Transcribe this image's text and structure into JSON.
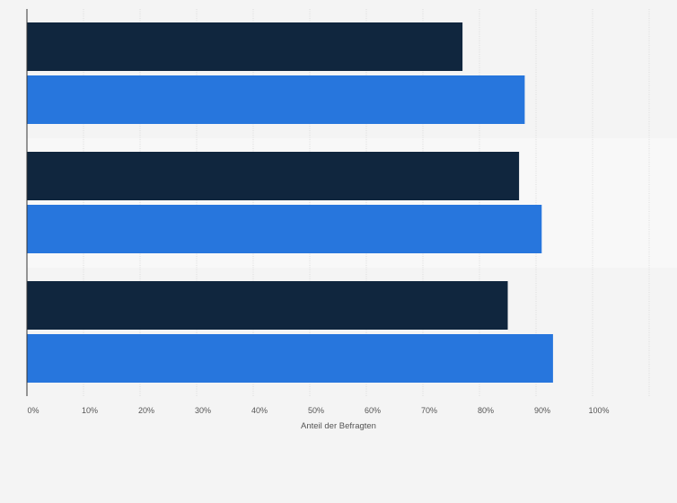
{
  "chart_data": {
    "type": "bar",
    "orientation": "horizontal",
    "categories": [
      "",
      "",
      ""
    ],
    "series": [
      {
        "values": [
          77,
          87,
          85
        ]
      },
      {
        "values": [
          88,
          91,
          93
        ]
      }
    ],
    "title": "",
    "xlabel": "Anteil der Befragten",
    "ylabel": "",
    "xlim": [
      0,
      110
    ],
    "x_ticks": [
      "0%",
      "10%",
      "20%",
      "30%",
      "40%",
      "50%",
      "60%",
      "70%",
      "80%",
      "90%",
      "100%"
    ],
    "grid": true,
    "legend": "none"
  },
  "colors": {
    "background": "#f4f4f4",
    "band": "#f8f8f8",
    "series": [
      "#10263e",
      "#2776dd"
    ],
    "grid": "#d6d6d6",
    "axis": "#333333"
  }
}
